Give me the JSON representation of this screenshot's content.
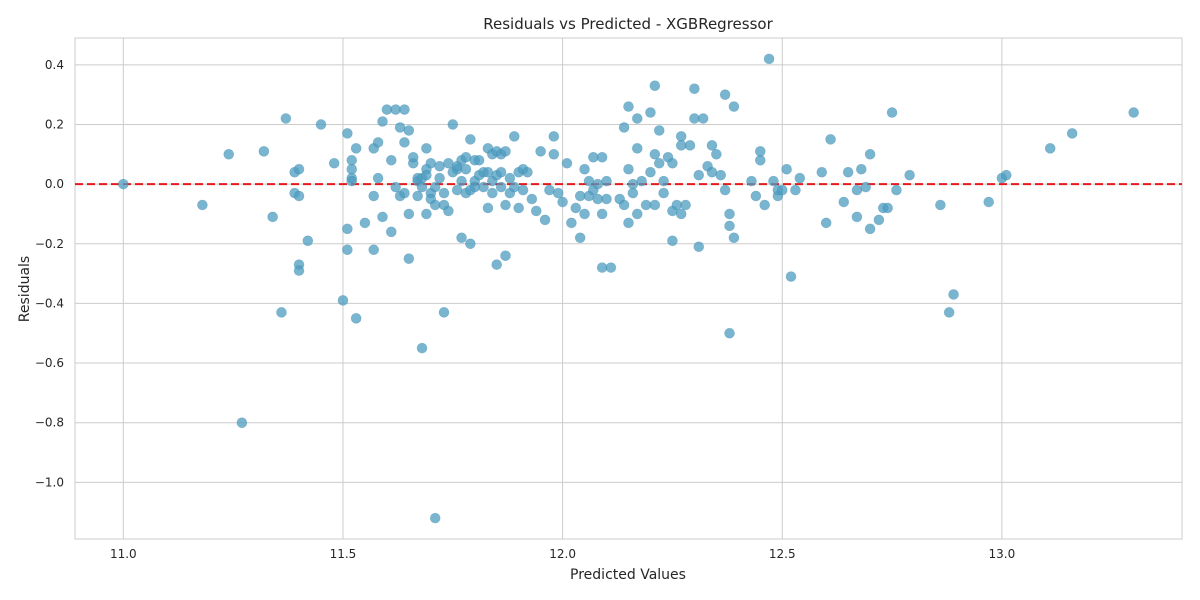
{
  "chart_data": {
    "type": "scatter",
    "title": "Residuals vs Predicted - XGBRegressor",
    "xlabel": "Predicted Values",
    "ylabel": "Residuals",
    "xlim": [
      10.89,
      13.41
    ],
    "ylim": [
      -1.19,
      0.49
    ],
    "xticks": [
      11.0,
      11.5,
      12.0,
      12.5,
      13.0
    ],
    "xtick_labels": [
      "11.0",
      "11.5",
      "12.0",
      "12.5",
      "13.0"
    ],
    "yticks": [
      0.4,
      0.2,
      0.0,
      -0.2,
      -0.4,
      -0.6,
      -0.8,
      -1.0
    ],
    "ytick_labels": [
      "0.4",
      "0.2",
      "0.0",
      "−0.2",
      "−0.4",
      "−0.6",
      "−0.8",
      "−1.0"
    ],
    "grid": true,
    "reference_line": {
      "y": 0.0,
      "style": "dashed",
      "color": "#e31a1c"
    },
    "point_color": "#4d9cc0",
    "points": [
      [
        11.0,
        0.0
      ],
      [
        11.18,
        -0.07
      ],
      [
        11.24,
        0.1
      ],
      [
        11.27,
        -0.8
      ],
      [
        11.32,
        0.11
      ],
      [
        11.34,
        -0.11
      ],
      [
        11.36,
        -0.43
      ],
      [
        11.37,
        0.22
      ],
      [
        11.39,
        0.04
      ],
      [
        11.39,
        -0.03
      ],
      [
        11.4,
        0.05
      ],
      [
        11.4,
        -0.04
      ],
      [
        11.4,
        -0.27
      ],
      [
        11.4,
        -0.29
      ],
      [
        11.42,
        -0.19
      ],
      [
        11.45,
        0.2
      ],
      [
        11.48,
        0.07
      ],
      [
        11.5,
        -0.39
      ],
      [
        11.51,
        -0.15
      ],
      [
        11.51,
        -0.22
      ],
      [
        11.51,
        0.17
      ],
      [
        11.52,
        0.08
      ],
      [
        11.52,
        0.05
      ],
      [
        11.52,
        0.02
      ],
      [
        11.52,
        0.01
      ],
      [
        11.53,
        0.12
      ],
      [
        11.53,
        -0.45
      ],
      [
        11.55,
        -0.13
      ],
      [
        11.57,
        -0.04
      ],
      [
        11.57,
        -0.22
      ],
      [
        11.57,
        0.12
      ],
      [
        11.58,
        0.14
      ],
      [
        11.58,
        0.02
      ],
      [
        11.59,
        0.21
      ],
      [
        11.59,
        -0.11
      ],
      [
        11.6,
        0.25
      ],
      [
        11.61,
        -0.16
      ],
      [
        11.61,
        0.08
      ],
      [
        11.62,
        0.25
      ],
      [
        11.62,
        -0.01
      ],
      [
        11.63,
        0.19
      ],
      [
        11.63,
        -0.04
      ],
      [
        11.64,
        0.14
      ],
      [
        11.64,
        0.25
      ],
      [
        11.64,
        -0.03
      ],
      [
        11.65,
        0.18
      ],
      [
        11.65,
        -0.25
      ],
      [
        11.65,
        -0.1
      ],
      [
        11.66,
        0.07
      ],
      [
        11.66,
        0.09
      ],
      [
        11.67,
        -0.04
      ],
      [
        11.67,
        0.01
      ],
      [
        11.67,
        0.02
      ],
      [
        11.68,
        -0.01
      ],
      [
        11.68,
        -0.55
      ],
      [
        11.68,
        0.02
      ],
      [
        11.69,
        0.05
      ],
      [
        11.69,
        0.12
      ],
      [
        11.69,
        -0.1
      ],
      [
        11.69,
        0.03
      ],
      [
        11.7,
        -0.03
      ],
      [
        11.7,
        0.07
      ],
      [
        11.7,
        -0.05
      ],
      [
        11.71,
        -1.12
      ],
      [
        11.71,
        -0.01
      ],
      [
        11.71,
        -0.07
      ],
      [
        11.72,
        0.02
      ],
      [
        11.72,
        0.06
      ],
      [
        11.73,
        -0.43
      ],
      [
        11.73,
        -0.07
      ],
      [
        11.73,
        -0.03
      ],
      [
        11.74,
        0.07
      ],
      [
        11.74,
        -0.09
      ],
      [
        11.75,
        0.04
      ],
      [
        11.75,
        0.2
      ],
      [
        11.76,
        0.05
      ],
      [
        11.76,
        -0.02
      ],
      [
        11.76,
        0.06
      ],
      [
        11.77,
        0.08
      ],
      [
        11.77,
        -0.18
      ],
      [
        11.77,
        0.01
      ],
      [
        11.78,
        0.05
      ],
      [
        11.78,
        -0.03
      ],
      [
        11.78,
        0.09
      ],
      [
        11.79,
        0.15
      ],
      [
        11.79,
        -0.02
      ],
      [
        11.79,
        -0.2
      ],
      [
        11.8,
        0.08
      ],
      [
        11.8,
        0.01
      ],
      [
        11.8,
        -0.01
      ],
      [
        11.81,
        0.08
      ],
      [
        11.81,
        0.03
      ],
      [
        11.82,
        -0.01
      ],
      [
        11.82,
        0.04
      ],
      [
        11.83,
        0.12
      ],
      [
        11.83,
        -0.08
      ],
      [
        11.83,
        0.04
      ],
      [
        11.84,
        0.1
      ],
      [
        11.84,
        -0.03
      ],
      [
        11.84,
        0.01
      ],
      [
        11.85,
        0.11
      ],
      [
        11.85,
        -0.27
      ],
      [
        11.85,
        0.03
      ],
      [
        11.86,
        0.1
      ],
      [
        11.86,
        -0.01
      ],
      [
        11.86,
        0.04
      ],
      [
        11.87,
        0.11
      ],
      [
        11.87,
        -0.24
      ],
      [
        11.87,
        -0.07
      ],
      [
        11.88,
        -0.03
      ],
      [
        11.88,
        0.02
      ],
      [
        11.89,
        0.16
      ],
      [
        11.89,
        -0.01
      ],
      [
        11.9,
        0.04
      ],
      [
        11.9,
        -0.08
      ],
      [
        11.91,
        0.05
      ],
      [
        11.91,
        -0.02
      ],
      [
        11.92,
        0.04
      ],
      [
        11.93,
        -0.05
      ],
      [
        11.94,
        -0.09
      ],
      [
        11.95,
        0.11
      ],
      [
        11.96,
        -0.12
      ],
      [
        11.97,
        -0.02
      ],
      [
        11.98,
        0.16
      ],
      [
        11.98,
        0.1
      ],
      [
        11.99,
        -0.03
      ],
      [
        12.0,
        -0.06
      ],
      [
        12.01,
        0.07
      ],
      [
        12.02,
        -0.13
      ],
      [
        12.03,
        -0.08
      ],
      [
        12.04,
        -0.18
      ],
      [
        12.04,
        -0.04
      ],
      [
        12.05,
        0.05
      ],
      [
        12.05,
        -0.1
      ],
      [
        12.06,
        0.01
      ],
      [
        12.06,
        -0.04
      ],
      [
        12.07,
        0.09
      ],
      [
        12.07,
        -0.02
      ],
      [
        12.08,
        0.0
      ],
      [
        12.08,
        -0.05
      ],
      [
        12.09,
        0.09
      ],
      [
        12.09,
        -0.28
      ],
      [
        12.09,
        -0.1
      ],
      [
        12.1,
        0.01
      ],
      [
        12.1,
        -0.05
      ],
      [
        12.11,
        -0.28
      ],
      [
        12.13,
        -0.05
      ],
      [
        12.14,
        0.19
      ],
      [
        12.14,
        -0.07
      ],
      [
        12.15,
        0.26
      ],
      [
        12.15,
        0.05
      ],
      [
        12.15,
        -0.13
      ],
      [
        12.16,
        0.0
      ],
      [
        12.16,
        -0.03
      ],
      [
        12.17,
        0.22
      ],
      [
        12.17,
        0.12
      ],
      [
        12.17,
        -0.1
      ],
      [
        12.18,
        0.01
      ],
      [
        12.19,
        -0.07
      ],
      [
        12.2,
        0.04
      ],
      [
        12.2,
        0.24
      ],
      [
        12.21,
        0.1
      ],
      [
        12.21,
        0.33
      ],
      [
        12.21,
        -0.07
      ],
      [
        12.22,
        0.07
      ],
      [
        12.22,
        0.18
      ],
      [
        12.23,
        0.01
      ],
      [
        12.23,
        -0.03
      ],
      [
        12.24,
        0.09
      ],
      [
        12.25,
        0.07
      ],
      [
        12.25,
        -0.19
      ],
      [
        12.25,
        -0.09
      ],
      [
        12.26,
        -0.07
      ],
      [
        12.27,
        0.16
      ],
      [
        12.27,
        0.13
      ],
      [
        12.27,
        -0.1
      ],
      [
        12.28,
        -0.07
      ],
      [
        12.29,
        0.13
      ],
      [
        12.3,
        0.32
      ],
      [
        12.3,
        0.22
      ],
      [
        12.31,
        0.03
      ],
      [
        12.31,
        -0.21
      ],
      [
        12.32,
        0.22
      ],
      [
        12.33,
        0.06
      ],
      [
        12.34,
        0.13
      ],
      [
        12.34,
        0.04
      ],
      [
        12.35,
        0.1
      ],
      [
        12.36,
        0.03
      ],
      [
        12.37,
        0.3
      ],
      [
        12.37,
        -0.02
      ],
      [
        12.38,
        -0.1
      ],
      [
        12.38,
        -0.14
      ],
      [
        12.38,
        -0.5
      ],
      [
        12.39,
        0.26
      ],
      [
        12.39,
        -0.18
      ],
      [
        12.43,
        0.01
      ],
      [
        12.44,
        -0.04
      ],
      [
        12.45,
        0.08
      ],
      [
        12.45,
        0.11
      ],
      [
        12.46,
        -0.07
      ],
      [
        12.47,
        0.42
      ],
      [
        12.48,
        0.01
      ],
      [
        12.49,
        -0.04
      ],
      [
        12.49,
        -0.02
      ],
      [
        12.5,
        -0.02
      ],
      [
        12.51,
        0.05
      ],
      [
        12.52,
        -0.31
      ],
      [
        12.53,
        -0.02
      ],
      [
        12.54,
        0.02
      ],
      [
        12.59,
        0.04
      ],
      [
        12.6,
        -0.13
      ],
      [
        12.61,
        0.15
      ],
      [
        12.64,
        -0.06
      ],
      [
        12.65,
        0.04
      ],
      [
        12.67,
        -0.11
      ],
      [
        12.67,
        -0.02
      ],
      [
        12.68,
        0.05
      ],
      [
        12.69,
        -0.01
      ],
      [
        12.7,
        -0.15
      ],
      [
        12.7,
        0.1
      ],
      [
        12.72,
        -0.12
      ],
      [
        12.73,
        -0.08
      ],
      [
        12.74,
        -0.08
      ],
      [
        12.75,
        0.24
      ],
      [
        12.76,
        -0.02
      ],
      [
        12.79,
        0.03
      ],
      [
        12.86,
        -0.07
      ],
      [
        12.88,
        -0.43
      ],
      [
        12.89,
        -0.37
      ],
      [
        12.97,
        -0.06
      ],
      [
        13.0,
        0.02
      ],
      [
        13.01,
        0.03
      ],
      [
        13.11,
        0.12
      ],
      [
        13.16,
        0.17
      ],
      [
        13.3,
        0.24
      ]
    ]
  }
}
